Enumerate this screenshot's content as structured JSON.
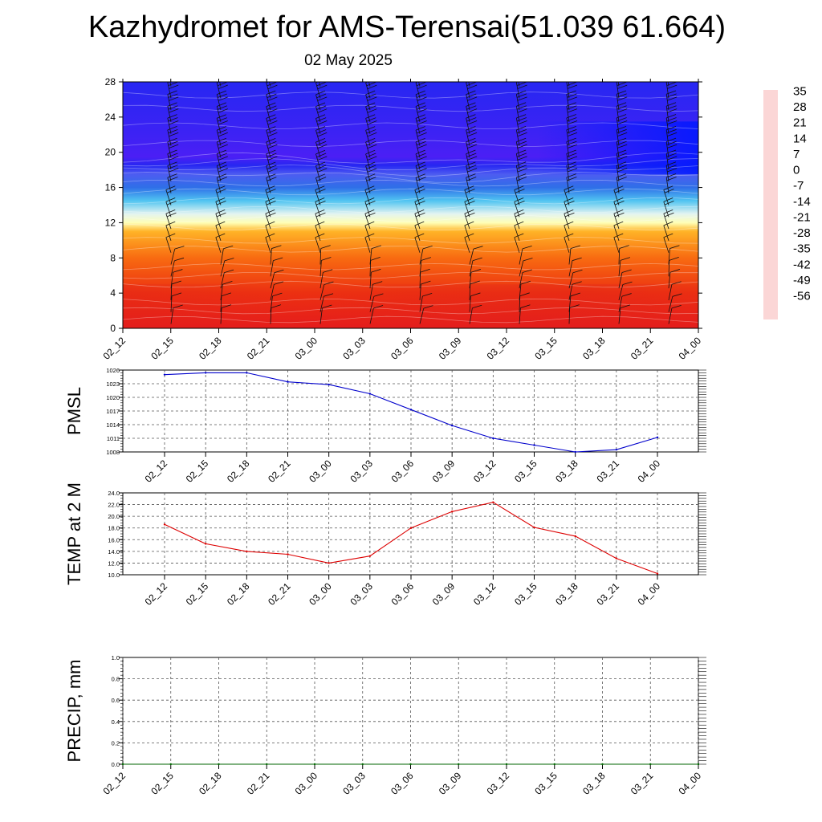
{
  "title": "Kazhydromet for AMS-Terensai(51.039 61.664)",
  "subtitle": "02 May 2025",
  "time_labels": [
    "02_12",
    "02_15",
    "02_18",
    "02_21",
    "03_00",
    "03_03",
    "03_06",
    "03_09",
    "03_12",
    "03_15",
    "03_18",
    "03_21",
    "04_00"
  ],
  "chart_data": [
    {
      "type": "heatmap",
      "title": "",
      "xlabel": "",
      "ylabel": "",
      "x": [
        "02_12",
        "02_15",
        "02_18",
        "02_21",
        "03_00",
        "03_03",
        "03_06",
        "03_09",
        "03_12",
        "03_15",
        "03_18",
        "03_21",
        "04_00"
      ],
      "y_ticks": [
        0,
        4,
        8,
        12,
        16,
        20,
        24,
        28
      ],
      "ylim": [
        0,
        28
      ],
      "colorbar": {
        "labels": [
          35,
          28,
          21,
          14,
          7,
          0,
          -7,
          -14,
          -21,
          -28,
          -35,
          -42,
          -49,
          -56
        ],
        "range": [
          -63,
          39
        ],
        "stops": [
          {
            "v": 39,
            "c": "#fbd6d6"
          },
          {
            "v": 30,
            "c": "#e51c1c"
          },
          {
            "v": 14,
            "c": "#f03c0a"
          },
          {
            "v": 4,
            "c": "#ff9a17"
          },
          {
            "v": -5,
            "c": "#ffd23a"
          },
          {
            "v": -10,
            "c": "#ffff80"
          },
          {
            "v": -14,
            "c": "#ffffee"
          },
          {
            "v": -18,
            "c": "#c6e8f4"
          },
          {
            "v": -26,
            "c": "#29b8f0"
          },
          {
            "v": -34,
            "c": "#2f6fe8"
          },
          {
            "v": -44,
            "c": "#5a6ef0"
          },
          {
            "v": -52,
            "c": "#2727f2"
          },
          {
            "v": -57,
            "c": "#4b1ff5"
          },
          {
            "v": -63,
            "c": "#8b34ee"
          }
        ]
      },
      "grid": false,
      "wind_barbs": true
    },
    {
      "type": "line",
      "ylabel": "PMSL",
      "x": [
        "02_12",
        "02_15",
        "02_18",
        "02_21",
        "03_00",
        "03_03",
        "03_06",
        "03_09",
        "03_12",
        "03_15",
        "03_18",
        "03_21",
        "04_00"
      ],
      "series": [
        {
          "values": [
            1025.0,
            1025.4,
            1025.4,
            1023.4,
            1022.8,
            1020.8,
            1017.3,
            1013.8,
            1011.0,
            1009.5,
            1008.0,
            1008.5,
            1011.2
          ],
          "color": "#0000cc"
        }
      ],
      "ylim": [
        1008,
        1026
      ],
      "y_ticks": [
        1008,
        1011,
        1014,
        1017,
        1020,
        1023,
        1026
      ],
      "grid": true
    },
    {
      "type": "line",
      "ylabel": "TEMP at 2 M",
      "x": [
        "02_12",
        "02_15",
        "02_18",
        "02_21",
        "03_00",
        "03_03",
        "03_06",
        "03_09",
        "03_12",
        "03_15",
        "03_18",
        "03_21",
        "04_00"
      ],
      "series": [
        {
          "values": [
            18.6,
            15.3,
            14.0,
            13.5,
            12.0,
            13.2,
            18.0,
            20.8,
            22.4,
            18.1,
            16.6,
            12.8,
            10.2
          ],
          "color": "#dd0000"
        }
      ],
      "ylim": [
        10,
        24
      ],
      "y_ticks": [
        "10.0",
        "12.0",
        "14.0",
        "16.0",
        "18.0",
        "20.0",
        "22.0",
        "24.0"
      ],
      "grid": true
    },
    {
      "type": "line",
      "ylabel": "PRECIP, mm",
      "x": [
        "02_12",
        "02_15",
        "02_18",
        "02_21",
        "03_00",
        "03_03",
        "03_06",
        "03_09",
        "03_12",
        "03_15",
        "03_18",
        "03_21",
        "04_00"
      ],
      "series": [
        {
          "values": [
            0,
            0,
            0,
            0,
            0,
            0,
            0,
            0,
            0,
            0,
            0,
            0,
            0
          ],
          "color": "#006600"
        }
      ],
      "ylim": [
        0,
        1
      ],
      "y_ticks": [
        "0.0",
        "0.2",
        "0.4",
        "0.6",
        "0.8",
        "1.0"
      ],
      "grid": true
    }
  ]
}
